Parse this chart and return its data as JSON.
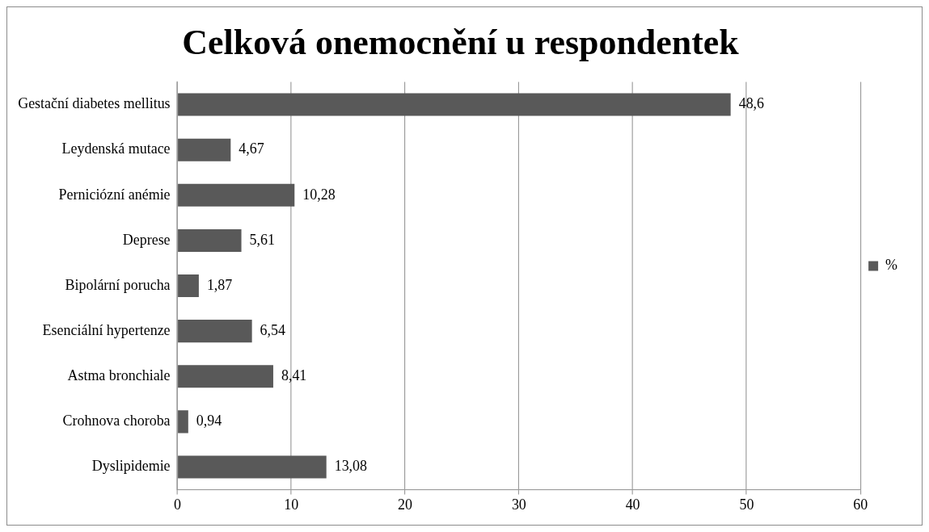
{
  "chart_data": {
    "type": "bar",
    "orientation": "horizontal",
    "title": "Celková onemocnění u respondentek",
    "categories": [
      "Gestační diabetes mellitus",
      "Leydenská mutace",
      "Perniciózní anémie",
      "Deprese",
      "Bipolární porucha",
      "Esenciální hypertenze",
      "Astma bronchiale",
      "Crohnova choroba",
      "Dyslipidemie"
    ],
    "series": [
      {
        "name": "%",
        "color": "#595959",
        "values": [
          48.6,
          4.67,
          10.28,
          5.61,
          1.87,
          6.54,
          8.41,
          0.94,
          13.08
        ],
        "value_labels": [
          "48,6",
          "4,67",
          "10,28",
          "5,61",
          "1,87",
          "6,54",
          "8,41",
          "0,94",
          "13,08"
        ]
      }
    ],
    "xlim": [
      0,
      60
    ],
    "xticks": [
      0,
      10,
      20,
      30,
      40,
      50,
      60
    ],
    "grid": "x",
    "legend": "right"
  }
}
